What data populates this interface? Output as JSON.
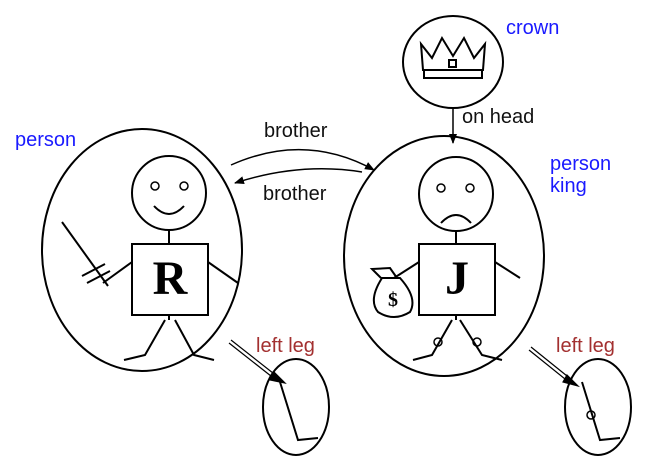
{
  "labels": {
    "crown": "crown",
    "on_head": "on head",
    "person_left": "person",
    "person_right": "person",
    "king": "king",
    "brother_top": "brother",
    "brother_bottom": "brother",
    "left_leg_left": "left leg",
    "left_leg_right": "left leg"
  },
  "figures": {
    "left_letter": "R",
    "right_letter": "J",
    "moneybag_symbol": "$"
  },
  "colors": {
    "class_label": "#1a1aff",
    "relation_label": "#111111",
    "part_label": "#a33030"
  }
}
